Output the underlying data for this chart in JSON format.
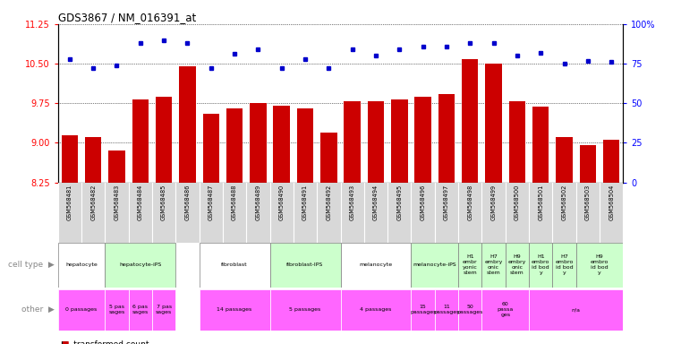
{
  "title": "GDS3867 / NM_016391_at",
  "samples": [
    "GSM568481",
    "GSM568482",
    "GSM568483",
    "GSM568484",
    "GSM568485",
    "GSM568486",
    "GSM568487",
    "GSM568488",
    "GSM568489",
    "GSM568490",
    "GSM568491",
    "GSM568492",
    "GSM568493",
    "GSM568494",
    "GSM568495",
    "GSM568496",
    "GSM568497",
    "GSM568498",
    "GSM568499",
    "GSM568500",
    "GSM568501",
    "GSM568502",
    "GSM568503",
    "GSM568504"
  ],
  "transformed_count": [
    9.15,
    9.1,
    8.85,
    9.82,
    9.88,
    10.45,
    9.55,
    9.65,
    9.75,
    9.7,
    9.65,
    9.2,
    9.78,
    9.78,
    9.82,
    9.88,
    9.92,
    10.58,
    10.5,
    9.78,
    9.68,
    9.1,
    8.95,
    9.05
  ],
  "percentile_rank": [
    78,
    72,
    74,
    88,
    90,
    88,
    72,
    81,
    84,
    72,
    78,
    72,
    84,
    80,
    84,
    86,
    86,
    88,
    88,
    80,
    82,
    75,
    77,
    76
  ],
  "ylim_left": [
    8.25,
    11.25
  ],
  "ylim_right": [
    0,
    100
  ],
  "yticks_left": [
    8.25,
    9.0,
    9.75,
    10.5,
    11.25
  ],
  "yticks_right": [
    0,
    25,
    50,
    75,
    100
  ],
  "bar_color": "#cc0000",
  "dot_color": "#0000cc",
  "cell_type_groups": [
    {
      "label": "hepatocyte",
      "start": 0,
      "end": 2,
      "color": "#ffffff"
    },
    {
      "label": "hepatocyte-iPS",
      "start": 2,
      "end": 5,
      "color": "#ccffcc"
    },
    {
      "label": "fibroblast",
      "start": 6,
      "end": 9,
      "color": "#ffffff"
    },
    {
      "label": "fibroblast-IPS",
      "start": 9,
      "end": 12,
      "color": "#ccffcc"
    },
    {
      "label": "melanocyte",
      "start": 12,
      "end": 15,
      "color": "#ffffff"
    },
    {
      "label": "melanocyte-iPS",
      "start": 15,
      "end": 17,
      "color": "#ccffcc"
    },
    {
      "label": "H1\nembr\nyonic\nstem",
      "start": 17,
      "end": 18,
      "color": "#ccffcc"
    },
    {
      "label": "H7\nembry\nonic\nstem",
      "start": 18,
      "end": 19,
      "color": "#ccffcc"
    },
    {
      "label": "H9\nembry\nonic\nstem",
      "start": 19,
      "end": 20,
      "color": "#ccffcc"
    },
    {
      "label": "H1\nembro\nid bod\ny",
      "start": 20,
      "end": 21,
      "color": "#ccffcc"
    },
    {
      "label": "H7\nembro\nid bod\ny",
      "start": 21,
      "end": 22,
      "color": "#ccffcc"
    },
    {
      "label": "H9\nembro\nid bod\ny",
      "start": 22,
      "end": 24,
      "color": "#ccffcc"
    }
  ],
  "other_groups": [
    {
      "label": "0 passages",
      "start": 0,
      "end": 2,
      "color": "#ff66ff"
    },
    {
      "label": "5 pas\nsages",
      "start": 2,
      "end": 3,
      "color": "#ff66ff"
    },
    {
      "label": "6 pas\nsages",
      "start": 3,
      "end": 4,
      "color": "#ff66ff"
    },
    {
      "label": "7 pas\nsages",
      "start": 4,
      "end": 5,
      "color": "#ff66ff"
    },
    {
      "label": "14 passages",
      "start": 6,
      "end": 9,
      "color": "#ff66ff"
    },
    {
      "label": "5 passages",
      "start": 9,
      "end": 12,
      "color": "#ff66ff"
    },
    {
      "label": "4 passages",
      "start": 12,
      "end": 15,
      "color": "#ff66ff"
    },
    {
      "label": "15\npassages",
      "start": 15,
      "end": 16,
      "color": "#ff66ff"
    },
    {
      "label": "11\npassages",
      "start": 16,
      "end": 17,
      "color": "#ff66ff"
    },
    {
      "label": "50\npassages",
      "start": 17,
      "end": 18,
      "color": "#ff66ff"
    },
    {
      "label": "60\npassa\nges",
      "start": 18,
      "end": 20,
      "color": "#ff66ff"
    },
    {
      "label": "n/a",
      "start": 20,
      "end": 24,
      "color": "#ff66ff"
    }
  ]
}
